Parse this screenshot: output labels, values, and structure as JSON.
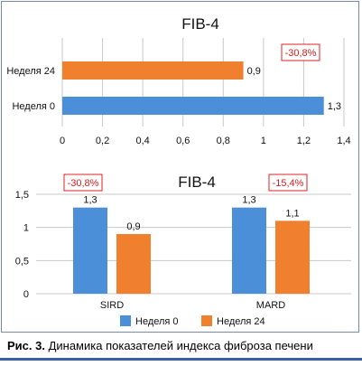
{
  "colors": {
    "week0": "#4a8fd8",
    "week24": "#f07f2e",
    "badge_border": "#e02020",
    "badge_text": "#d81e1e",
    "grid": "#c8c8c8",
    "rule": "#3a5f9e"
  },
  "caption": {
    "label": "Рис. 3.",
    "text": " Динамика показателей индекса фиброза печени"
  },
  "chart_data": [
    {
      "type": "bar",
      "orientation": "horizontal",
      "title": "FIB-4",
      "categories": [
        "Неделя 24",
        "Неделя 0"
      ],
      "values": [
        0.9,
        1.3
      ],
      "value_labels": [
        "0,9",
        "1,3"
      ],
      "xlim": [
        0,
        1.4
      ],
      "xticks": [
        "0",
        "0,2",
        "0,4",
        "0,6",
        "0,8",
        "1",
        "1,2",
        "1,4"
      ],
      "grid": "vertical",
      "annotation": "-30,8%"
    },
    {
      "type": "bar",
      "title": "FIB-4",
      "categories": [
        "SIRD",
        "MARD"
      ],
      "series": [
        {
          "name": "Неделя 0",
          "values": [
            1.3,
            1.3
          ],
          "labels": [
            "1,3",
            "1,3"
          ]
        },
        {
          "name": "Неделя 24",
          "values": [
            0.9,
            1.1
          ],
          "labels": [
            "0,9",
            "1,1"
          ]
        }
      ],
      "ylim": [
        0,
        1.5
      ],
      "yticks": [
        "0",
        "0,5",
        "1",
        "1,5"
      ],
      "annotations": [
        "-30,8%",
        "-15,4%"
      ],
      "legend": "bottom"
    }
  ]
}
